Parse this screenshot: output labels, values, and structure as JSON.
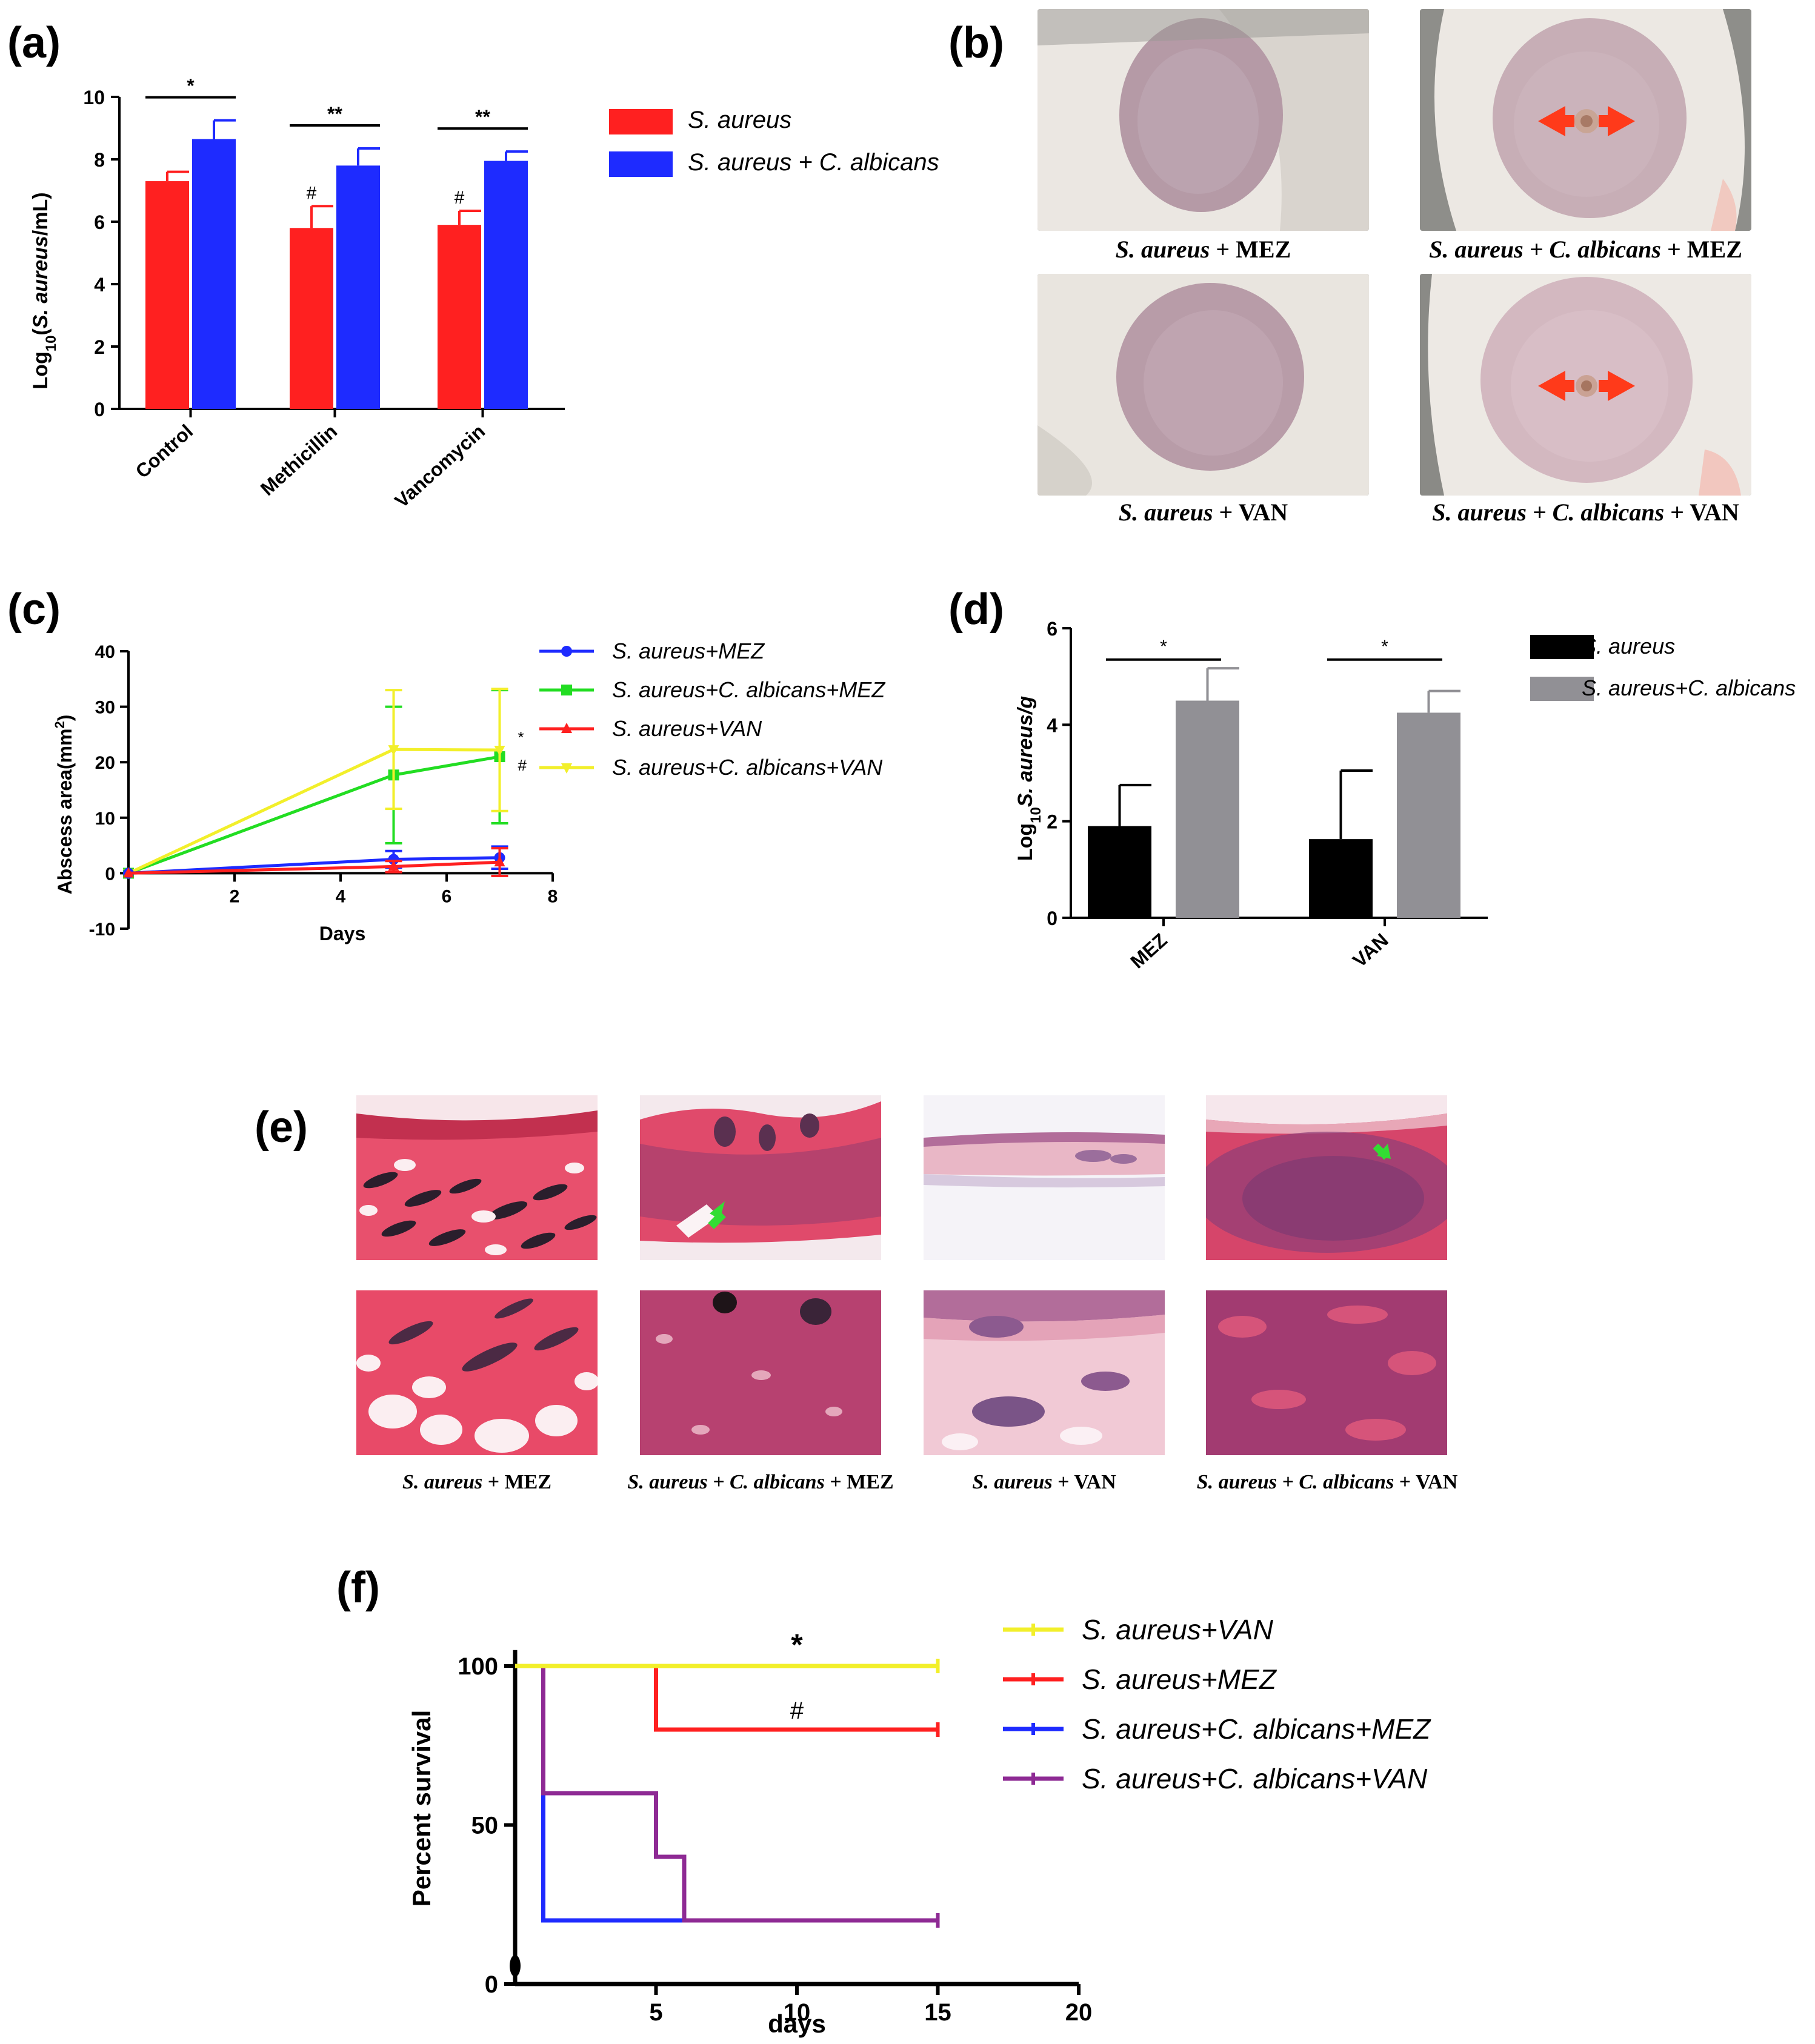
{
  "panels": {
    "a": "(a)",
    "b": "(b)",
    "c": "(c)",
    "d": "(d)",
    "e": "(e)",
    "f": "(f)"
  },
  "chart_data": [
    {
      "id": "a",
      "type": "bar",
      "ylabel_prefix": "Log",
      "ylabel_sub": "10",
      "ylabel_species": "S. aureus",
      "ylabel_unit": "/mL",
      "ylim": [
        0,
        10
      ],
      "yticks": [
        0,
        2,
        4,
        6,
        8,
        10
      ],
      "categories": [
        "Control",
        "Methicillin",
        "Vancomycin"
      ],
      "series": [
        {
          "name": "S. aureus",
          "color": "#ff2020",
          "values": [
            7.3,
            5.8,
            5.9
          ],
          "errors": [
            0.3,
            0.7,
            0.45
          ]
        },
        {
          "name": "S. aureus + C. albicans",
          "color": "#1e2bff",
          "values": [
            8.65,
            7.8,
            7.95
          ],
          "errors": [
            0.6,
            0.55,
            0.3
          ]
        }
      ],
      "bar_marks": [
        "#",
        "#"
      ],
      "significance": [
        "*",
        "**",
        "**"
      ]
    },
    {
      "id": "c",
      "type": "line",
      "ylabel": "Abscess area(mm",
      "ylabel_sup": "2",
      "ylabel_close": ")",
      "xlabel": "Days",
      "xlim": [
        0,
        8
      ],
      "ylim": [
        -10,
        40
      ],
      "xticks": [
        2,
        4,
        6,
        8
      ],
      "yticks": [
        -10,
        0,
        10,
        20,
        30,
        40
      ],
      "x": [
        0,
        5,
        7
      ],
      "series": [
        {
          "name": "S. aureus+MEZ",
          "color": "#1e2bff",
          "marker": "circle",
          "values": [
            0,
            2.5,
            2.8
          ],
          "errors": [
            0,
            1.5,
            2.0
          ]
        },
        {
          "name": "S. aureus+C. albicans+MEZ",
          "color": "#22dd22",
          "marker": "square",
          "values": [
            0,
            17.7,
            21
          ],
          "errors": [
            0,
            12.3,
            12.0
          ]
        },
        {
          "name": "S. aureus+VAN",
          "color": "#ff2020",
          "marker": "triangle",
          "values": [
            0,
            1.2,
            2.0
          ],
          "errors": [
            0,
            1.0,
            2.5
          ]
        },
        {
          "name": "S. aureus+C. albicans+VAN",
          "color": "#f2ef2a",
          "marker": "inverted-triangle",
          "values": [
            0,
            22.3,
            22.2
          ],
          "errors": [
            0,
            10.7,
            11.0
          ]
        }
      ],
      "marks": [
        "*",
        "#"
      ]
    },
    {
      "id": "d",
      "type": "bar",
      "ylabel_prefix": "Log",
      "ylabel_sub": "10",
      "ylabel_rest": "S. aureus/g",
      "ylim": [
        0,
        6
      ],
      "yticks": [
        0,
        2,
        4,
        6
      ],
      "categories": [
        "MEZ",
        "VAN"
      ],
      "series": [
        {
          "name": "S. aureus",
          "color": "#000000",
          "values": [
            1.9,
            1.63
          ],
          "errors": [
            0.85,
            1.42
          ]
        },
        {
          "name": "S. aureus+C. albicans",
          "color": "#919095",
          "values": [
            4.5,
            4.25
          ],
          "errors": [
            0.67,
            0.45
          ]
        }
      ],
      "significance": [
        "*",
        "*"
      ]
    },
    {
      "id": "f",
      "type": "line",
      "subtype": "kaplan-meier",
      "ylabel": "Percent survival",
      "xlabel": "days",
      "xlim": [
        0,
        20
      ],
      "ylim": [
        0,
        100
      ],
      "xticks": [
        5,
        10,
        15,
        20
      ],
      "yticks": [
        0,
        50,
        100
      ],
      "series": [
        {
          "name": "S. aureus+VAN",
          "color": "#f2ef2a",
          "steps": [
            [
              0,
              100
            ],
            [
              15,
              100
            ]
          ]
        },
        {
          "name": "S. aureus+MEZ",
          "color": "#ff2020",
          "steps": [
            [
              5,
              100
            ],
            [
              5,
              80
            ],
            [
              15,
              80
            ]
          ]
        },
        {
          "name": "S. aureus+C. albicans+MEZ",
          "color": "#1e2bff",
          "steps": [
            [
              1,
              100
            ],
            [
              1,
              20
            ],
            [
              15,
              20
            ]
          ]
        },
        {
          "name": "S. aureus+C. albicans+VAN",
          "color": "#8e2a94",
          "steps": [
            [
              1,
              100
            ],
            [
              1,
              60
            ],
            [
              5,
              60
            ],
            [
              5,
              40
            ],
            [
              6,
              40
            ],
            [
              6,
              20
            ],
            [
              15,
              20
            ]
          ]
        }
      ],
      "marks": [
        "*",
        "#"
      ]
    }
  ],
  "panel_b": {
    "captions": [
      {
        "species": "S. aureus",
        "rest": " + MEZ"
      },
      {
        "species": "S. aureus + C. albicans",
        "rest": " + MEZ"
      },
      {
        "species": "S. aureus",
        "rest": " + VAN"
      },
      {
        "species": "S. aureus + C. albicans",
        "rest": " + VAN"
      }
    ]
  },
  "panel_e": {
    "captions": [
      {
        "species": "S. aureus",
        "rest": " + MEZ"
      },
      {
        "species": "S. aureus + C. albicans",
        "rest": " + MEZ"
      },
      {
        "species": "S. aureus",
        "rest": " + VAN"
      },
      {
        "species": "S. aureus + C. albicans",
        "rest": " + VAN"
      }
    ]
  },
  "colors": {
    "skin": "#e9e2dc",
    "lesion": "#b59aa6",
    "histo_pink": "#e04a6b",
    "histo_light": "#f0c8d4",
    "arrow_red": "#ff3a1a",
    "arrow_green": "#33dd33"
  }
}
